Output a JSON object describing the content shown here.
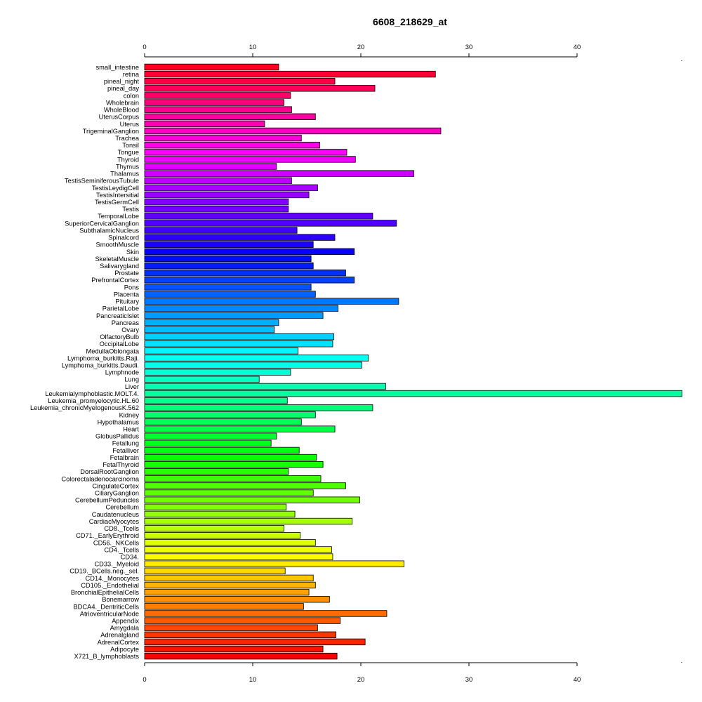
{
  "chart_data": {
    "type": "bar",
    "orientation": "horizontal",
    "title": "6608_218629_at",
    "xlabel": "",
    "ylabel": "",
    "xlim": [
      0,
      50
    ],
    "x_ticks": [
      0,
      10,
      20,
      30,
      40
    ],
    "grid": false,
    "legend": "none",
    "categories": [
      "small_intestine",
      "retina",
      "pineal_night",
      "pineal_day",
      "colon",
      "Wholebrain",
      "WholeBlood",
      "UterusCorpus",
      "Uterus",
      "TrigeminalGanglion",
      "Trachea",
      "Tonsil",
      "Tongue",
      "Thyroid",
      "Thymus",
      "Thalamus",
      "TestisSeminiferousTubule",
      "TestisLeydigCell",
      "TestisIntersitial",
      "TestisGermCell",
      "Testis",
      "TemporalLobe",
      "SuperiorCervicalGanglion",
      "SubthalamicNucleus",
      "Spinalcord",
      "SmoothMuscle",
      "Skin",
      "SkeletalMuscle",
      "Salivarygland",
      "Prostate",
      "PrefrontalCortex",
      "Pons",
      "Placenta",
      "Pituitary",
      "ParietalLobe",
      "PancreaticIslet",
      "Pancreas",
      "Ovary",
      "OlfactoryBulb",
      "OccipitalLobe",
      "MedullaOblongata",
      "Lymphoma_burkitts.Raji.",
      "Lymphoma_burkitts.Daudi.",
      "Lymphnode",
      "Lung",
      "Liver",
      "Leukemialymphoblastic.MOLT.4.",
      "Leukemia_promyelocytic.HL.60",
      "Leukemia_chronicMyelogenousK.562",
      "Kidney",
      "Hypothalamus",
      "Heart",
      "GlobusPallidus",
      "Fetallung",
      "Fetalliver",
      "Fetalbrain",
      "FetalThyroid",
      "DorsalRootGanglion",
      "Colorectaladenocarcinoma",
      "CingulateCortex",
      "CiliaryGanglion",
      "CerebellumPeduncles",
      "Cerebellum",
      "Caudatenucleus",
      "CardiacMyocytes",
      "CD8._Tcells",
      "CD71._EarlyErythroid",
      "CD56._NKCells",
      "CD4._Tcells",
      "CD34.",
      "CD33._Myeloid",
      "CD19._BCells.neg._sel.",
      "CD14._Monocytes",
      "CD105._Endothelial",
      "BronchialEpithelialCells",
      "Bonemarrow",
      "BDCA4._DentriticCells",
      "AtrioventricularNode",
      "Appendix",
      "Amygdala",
      "Adrenalgland",
      "AdrenalCortex",
      "Adipocyte",
      "X721_B_lymphoblasts"
    ],
    "values": [
      12.4,
      26.9,
      17.6,
      21.3,
      13.5,
      12.9,
      13.6,
      15.8,
      11.1,
      27.4,
      14.5,
      16.2,
      18.7,
      19.5,
      12.2,
      24.9,
      13.6,
      16.0,
      15.2,
      13.3,
      13.3,
      21.1,
      23.3,
      14.1,
      17.6,
      15.6,
      19.4,
      15.4,
      15.6,
      18.6,
      19.4,
      15.4,
      15.8,
      23.5,
      17.9,
      16.5,
      12.4,
      12.0,
      17.5,
      17.4,
      14.2,
      20.7,
      20.1,
      13.5,
      10.6,
      22.3,
      49.7,
      13.2,
      21.1,
      15.8,
      14.5,
      17.6,
      12.2,
      11.7,
      14.3,
      15.9,
      16.5,
      13.3,
      16.3,
      18.6,
      15.6,
      19.9,
      13.1,
      13.9,
      19.2,
      12.9,
      14.4,
      15.8,
      17.3,
      17.4,
      24.0,
      13.0,
      15.6,
      15.8,
      15.2,
      17.1,
      14.7,
      22.4,
      18.1,
      16.0,
      17.7,
      20.4,
      16.5,
      17.8
    ]
  }
}
